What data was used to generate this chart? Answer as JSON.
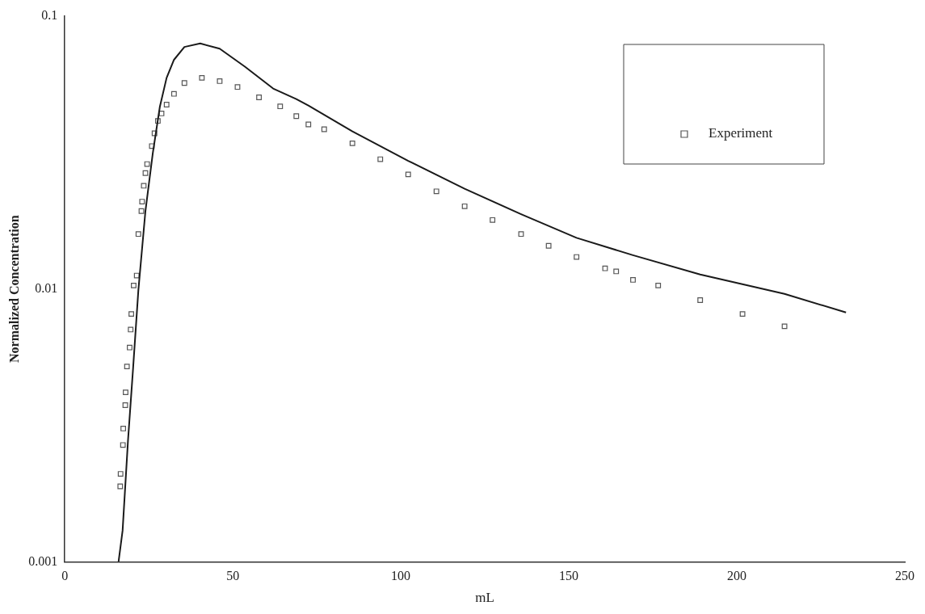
{
  "chart_data": {
    "type": "line",
    "xlabel": "mL",
    "ylabel": "Normalized Concentration",
    "log": "y",
    "grid": false,
    "legend": "top right",
    "xlim": [
      0,
      250
    ],
    "xticks": [
      0,
      50,
      100,
      150,
      200,
      250
    ],
    "ylim": [
      0.001,
      0.1
    ],
    "yticks": [
      0.001,
      0.01,
      0.1
    ],
    "series": [
      {
        "color": "#1a1a1a",
        "marker": "none",
        "line_style": "solid",
        "x": [
          16.0,
          17.2,
          18.8,
          20.3,
          21.9,
          24.0,
          26.2,
          28.3,
          30.3,
          32.5,
          35.6,
          40.3,
          46.1,
          53.6,
          62.0,
          68.9,
          72.5,
          85.6,
          102.2,
          119.0,
          135.8,
          152.3,
          169.1,
          189.1,
          214.2,
          232.5
        ],
        "values": [
          0.001,
          0.0013,
          0.00277,
          0.00507,
          0.0099,
          0.0193,
          0.0315,
          0.0466,
          0.0594,
          0.0692,
          0.0771,
          0.0794,
          0.076,
          0.0653,
          0.0543,
          0.0497,
          0.047,
          0.0378,
          0.0295,
          0.0233,
          0.0188,
          0.0154,
          0.0133,
          0.0113,
          0.0096,
          0.0082
        ]
      },
      {
        "type": "scatter",
        "name": "Experiment",
        "color": "#555555",
        "marker": "square",
        "x": [
          16.5,
          16.6,
          17.3,
          17.4,
          18.0,
          18.1,
          18.5,
          19.3,
          19.6,
          19.8,
          20.5,
          21.4,
          21.9,
          22.8,
          23.0,
          23.5,
          24.0,
          24.5,
          25.9,
          26.7,
          27.7,
          28.8,
          30.3,
          32.5,
          35.6,
          40.8,
          46.1,
          51.4,
          57.8,
          64.1,
          68.9,
          72.5,
          77.2,
          85.6,
          93.9,
          102.2,
          110.6,
          119.0,
          127.3,
          135.8,
          144.0,
          152.3,
          160.8,
          164.1,
          169.1,
          176.6,
          189.1,
          201.7,
          214.2
        ],
        "values": [
          0.00189,
          0.0021,
          0.00268,
          0.00308,
          0.00375,
          0.00418,
          0.0052,
          0.0061,
          0.0071,
          0.0081,
          0.0103,
          0.0112,
          0.0159,
          0.0193,
          0.0209,
          0.0239,
          0.0266,
          0.0287,
          0.0334,
          0.0372,
          0.0413,
          0.044,
          0.0474,
          0.0519,
          0.0569,
          0.0594,
          0.0578,
          0.055,
          0.0504,
          0.0467,
          0.043,
          0.0401,
          0.0385,
          0.0342,
          0.0299,
          0.0263,
          0.0228,
          0.0201,
          0.0179,
          0.0159,
          0.0144,
          0.0131,
          0.0119,
          0.0116,
          0.0108,
          0.0103,
          0.0091,
          0.0081,
          0.0073
        ]
      }
    ]
  }
}
